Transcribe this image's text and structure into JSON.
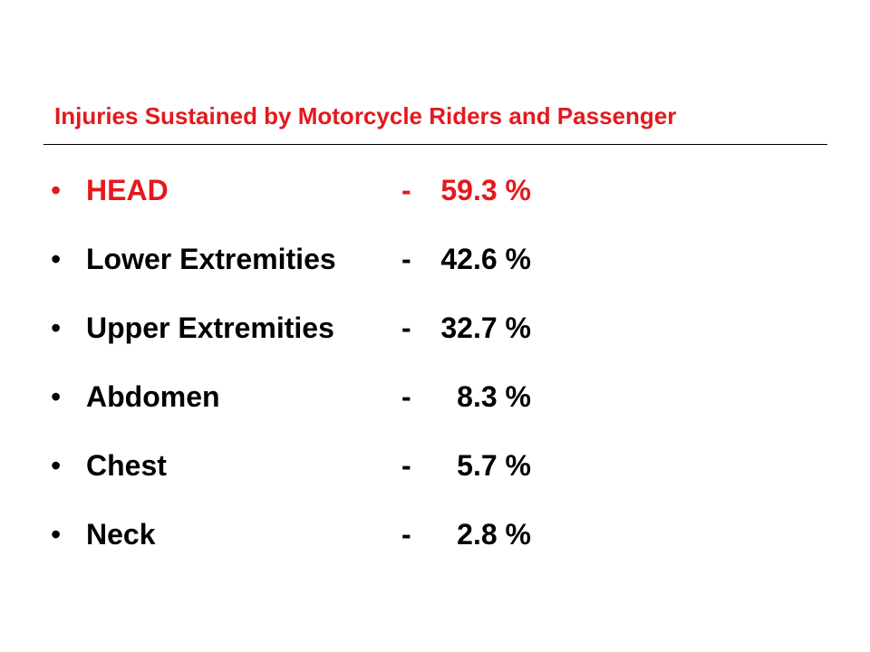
{
  "slide": {
    "title": "Injuries Sustained by Motorcycle Riders and Passenger",
    "accent_color": "#e3191c",
    "bullet_glyph": "•",
    "items": [
      {
        "label": "HEAD",
        "separator": "-",
        "value": "59.3 %",
        "highlight": true
      },
      {
        "label": "Lower Extremities",
        "separator": "-",
        "value": "42.6 %",
        "highlight": false
      },
      {
        "label": "Upper Extremities",
        "separator": "-",
        "value": "32.7 %",
        "highlight": false
      },
      {
        "label": "Abdomen",
        "separator": "-",
        "value": "8.3 %",
        "highlight": false
      },
      {
        "label": "Chest",
        "separator": "-",
        "value": "5.7 %",
        "highlight": false
      },
      {
        "label": "Neck",
        "separator": "-",
        "value": "2.8 %",
        "highlight": false
      }
    ]
  }
}
